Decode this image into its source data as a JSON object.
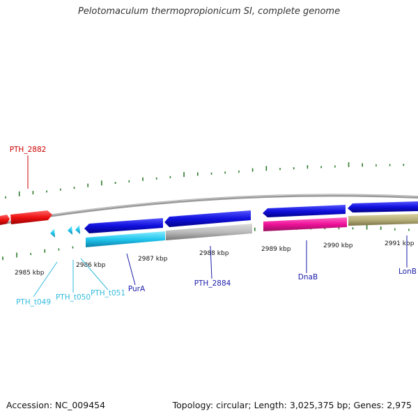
{
  "title": "Pelotomaculum thermopropionicum SI, complete genome",
  "footer": {
    "accession": "Accession: NC_009454",
    "summary": "Topology: circular; Length: 3,025,375 bp; Genes: 2,975"
  },
  "genes": [
    {
      "id": "PTH_2882",
      "label": "PTH_2882",
      "color": "#cc0000"
    },
    {
      "id": "PTH_t049",
      "label": "PTH_t049",
      "color": "#33bbdd"
    },
    {
      "id": "PTH_t050",
      "label": "PTH_t050",
      "color": "#33bbdd"
    },
    {
      "id": "PTH_t051",
      "label": "PTH_t051",
      "color": "#33bbdd"
    },
    {
      "id": "PurA",
      "label": "PurA",
      "color": "#1a1aaa"
    },
    {
      "id": "PTH_2884",
      "label": "PTH_2884",
      "color": "#1a1aaa"
    },
    {
      "id": "DnaB",
      "label": "DnaB",
      "color": "#1a1aaa"
    },
    {
      "id": "LonB",
      "label": "LonB",
      "color": "#1a1aaa"
    }
  ],
  "ticks": [
    "2985 kbp",
    "2986 kbp",
    "2987 kbp",
    "2988 kbp",
    "2989 kbp",
    "2990 kbp",
    "2991 kbp"
  ],
  "colors": {
    "backbone": "#888888",
    "forward_blue": "#1010dd",
    "reverse_blue": "#1010dd",
    "red": "#ee1111",
    "cyan": "#33ccee",
    "gray": "#bbbbbb",
    "magenta": "#ee1199",
    "olive": "#bbb377",
    "gc_tick": "#2a7a2a"
  }
}
